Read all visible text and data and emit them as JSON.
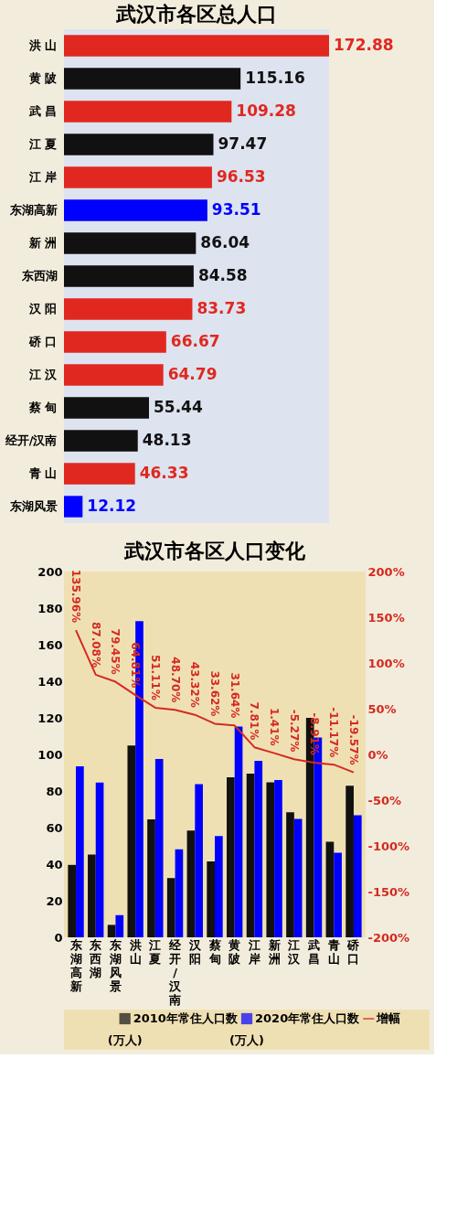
{
  "chart_data": [
    {
      "type": "bar",
      "orientation": "horizontal",
      "title": "武汉市各区总人口",
      "data_labels": true,
      "categories": [
        "洪 山",
        "黄 陂",
        "武 昌",
        "江 夏",
        "江 岸",
        "东湖高新",
        "新 洲",
        "东西湖",
        "汉 阳",
        "硚 口",
        "江 汉",
        "蔡 甸",
        "经开/汉南",
        "青 山",
        "东湖风景"
      ],
      "values": [
        172.88,
        115.16,
        109.28,
        97.47,
        96.53,
        93.51,
        86.04,
        84.58,
        83.73,
        66.67,
        64.79,
        55.44,
        48.13,
        46.33,
        12.12
      ],
      "colors": [
        "#e02820",
        "#111111",
        "#e02820",
        "#111111",
        "#e02820",
        "#0000ff",
        "#111111",
        "#111111",
        "#e02820",
        "#e02820",
        "#e02820",
        "#111111",
        "#111111",
        "#e02820",
        "#0000ff"
      ]
    },
    {
      "type": "bar",
      "title": "武汉市各区人口变化",
      "categories": [
        "东湖高新",
        "东西湖",
        "东湖风景",
        "洪山",
        "江夏",
        "经开/汉南",
        "汉阳",
        "蔡甸",
        "黄陂",
        "江岸",
        "新洲",
        "江汉",
        "武昌",
        "青山",
        "硚口"
      ],
      "series": [
        {
          "name": "2010年常住人口数",
          "color": "#111111",
          "values": [
            39.6,
            45.2,
            6.8,
            104.9,
            64.5,
            32.4,
            58.4,
            41.5,
            87.5,
            89.5,
            84.8,
            68.4,
            120.0,
            52.2,
            82.9
          ]
        },
        {
          "name": "2020年常住人口数",
          "color": "#0000ff",
          "values": [
            93.5,
            84.6,
            12.1,
            172.9,
            97.5,
            48.1,
            83.7,
            55.4,
            115.2,
            96.5,
            86.0,
            64.8,
            109.3,
            46.3,
            66.7
          ]
        },
        {
          "name": "增幅",
          "type": "line",
          "axis": "y2",
          "color": "#d42a20",
          "values": [
            135.96,
            87.08,
            79.45,
            64.81,
            51.11,
            48.7,
            43.32,
            33.62,
            31.64,
            7.81,
            1.41,
            -5.27,
            -8.91,
            -11.17,
            -19.57
          ],
          "value_labels": [
            "135.96%",
            "87.08%",
            "79.45%",
            "64.81%",
            "51.11%",
            "48.70%",
            "43.32%",
            "33.62%",
            "31.64%",
            "7.81%",
            "1.41%",
            "-5.27%",
            "-8.91%",
            "-11.17%",
            "-19.57%"
          ]
        }
      ],
      "ylim": [
        0,
        200
      ],
      "yticks": [
        0,
        20,
        40,
        60,
        80,
        100,
        120,
        140,
        160,
        180,
        200
      ],
      "y2lim": [
        -200,
        200
      ],
      "y2ticks": [
        {
          "value": -200,
          "label": "-200%"
        },
        {
          "value": -150,
          "label": "-150%"
        },
        {
          "value": -100,
          "label": "-100%"
        },
        {
          "value": -50,
          "label": "-50%"
        },
        {
          "value": 0,
          "label": "0%"
        },
        {
          "value": 50,
          "label": "50%"
        },
        {
          "value": 100,
          "label": "100%"
        },
        {
          "value": 150,
          "label": "150%"
        },
        {
          "value": 200,
          "label": "200%"
        }
      ],
      "legend": "bottom",
      "annotations": [
        "(万人)",
        "(万人)"
      ]
    }
  ]
}
